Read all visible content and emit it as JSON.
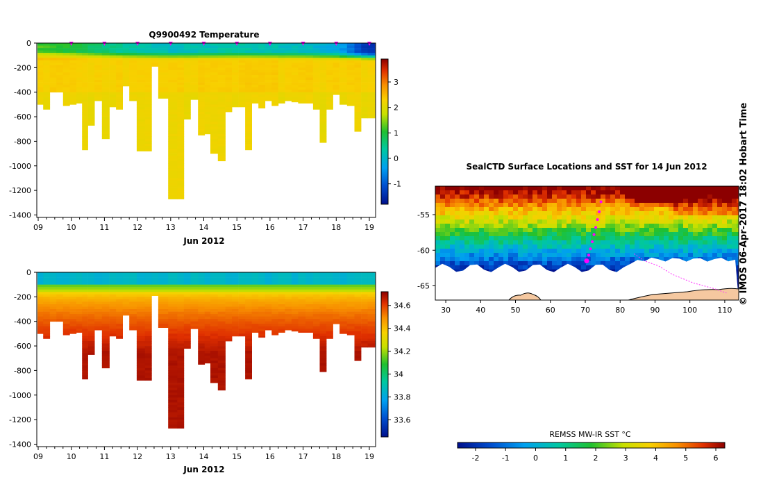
{
  "chart_data": [
    {
      "type": "heatmap",
      "panel": "temperature-section",
      "title": "Q9900492  Temperature",
      "xlabel": "Jun 2012",
      "x_ticks": [
        "09",
        "10",
        "11",
        "12",
        "13",
        "14",
        "15",
        "16",
        "17",
        "18",
        "19"
      ],
      "y_ticks": [
        "0",
        "-200",
        "-400",
        "-600",
        "-800",
        "-1000",
        "-1200",
        "-1400"
      ],
      "ylim": [
        -1420,
        0
      ],
      "xlim": [
        9.0,
        19.1
      ],
      "colorbar": {
        "ticks": [
          "3",
          "2",
          "1",
          "0",
          "-1"
        ],
        "range": [
          -1.8,
          3.9
        ]
      },
      "profile_markers_days": [
        10,
        11,
        12,
        13,
        14,
        15,
        16,
        17,
        18,
        19
      ],
      "profiles": [
        {
          "day": 9.05,
          "max_depth": 500
        },
        {
          "day": 9.25,
          "max_depth": 540
        },
        {
          "day": 9.45,
          "max_depth": 400
        },
        {
          "day": 9.65,
          "max_depth": 400
        },
        {
          "day": 9.85,
          "max_depth": 510
        },
        {
          "day": 10.05,
          "max_depth": 500
        },
        {
          "day": 10.25,
          "max_depth": 490
        },
        {
          "day": 10.4,
          "max_depth": 870
        },
        {
          "day": 10.6,
          "max_depth": 670
        },
        {
          "day": 10.8,
          "max_depth": 470
        },
        {
          "day": 11.05,
          "max_depth": 780
        },
        {
          "day": 11.25,
          "max_depth": 520
        },
        {
          "day": 11.45,
          "max_depth": 540
        },
        {
          "day": 11.65,
          "max_depth": 350
        },
        {
          "day": 11.85,
          "max_depth": 470
        },
        {
          "day": 12.1,
          "max_depth": 880
        },
        {
          "day": 12.35,
          "max_depth": 880
        },
        {
          "day": 12.5,
          "max_depth": 190
        },
        {
          "day": 12.75,
          "max_depth": 450
        },
        {
          "day": 13.1,
          "max_depth": 1270
        },
        {
          "day": 13.3,
          "max_depth": 1270
        },
        {
          "day": 13.5,
          "max_depth": 620
        },
        {
          "day": 13.7,
          "max_depth": 460
        },
        {
          "day": 13.95,
          "max_depth": 750
        },
        {
          "day": 14.1,
          "max_depth": 740
        },
        {
          "day": 14.3,
          "max_depth": 900
        },
        {
          "day": 14.55,
          "max_depth": 960
        },
        {
          "day": 14.75,
          "max_depth": 560
        },
        {
          "day": 14.95,
          "max_depth": 520
        },
        {
          "day": 15.15,
          "max_depth": 520
        },
        {
          "day": 15.35,
          "max_depth": 870
        },
        {
          "day": 15.55,
          "max_depth": 490
        },
        {
          "day": 15.75,
          "max_depth": 530
        },
        {
          "day": 15.95,
          "max_depth": 470
        },
        {
          "day": 16.15,
          "max_depth": 510
        },
        {
          "day": 16.35,
          "max_depth": 490
        },
        {
          "day": 16.55,
          "max_depth": 470
        },
        {
          "day": 16.75,
          "max_depth": 480
        },
        {
          "day": 16.95,
          "max_depth": 490
        },
        {
          "day": 17.2,
          "max_depth": 490
        },
        {
          "day": 17.4,
          "max_depth": 540
        },
        {
          "day": 17.6,
          "max_depth": 810
        },
        {
          "day": 17.8,
          "max_depth": 540
        },
        {
          "day": 18.0,
          "max_depth": 420
        },
        {
          "day": 18.2,
          "max_depth": 500
        },
        {
          "day": 18.45,
          "max_depth": 510
        },
        {
          "day": 18.65,
          "max_depth": 720
        },
        {
          "day": 18.85,
          "max_depth": 610
        },
        {
          "day": 19.05,
          "max_depth": 610
        }
      ],
      "surface_temperature_by_day": [
        1.2,
        1.0,
        0.6,
        0.3,
        0.1,
        0.2,
        0.3,
        0.2,
        0.1,
        -0.2,
        -1.5
      ],
      "deep_temperature": 2.2
    },
    {
      "type": "heatmap",
      "panel": "salinity-section",
      "title": "",
      "xlabel": "Jun 2012",
      "x_ticks": [
        "09",
        "10",
        "11",
        "12",
        "13",
        "14",
        "15",
        "16",
        "17",
        "18",
        "19"
      ],
      "y_ticks": [
        "0",
        "-200",
        "-400",
        "-600",
        "-800",
        "-1000",
        "-1200",
        "-1400"
      ],
      "ylim": [
        -1420,
        0
      ],
      "colorbar": {
        "ticks": [
          "34.6",
          "34.4",
          "34.2",
          "34",
          "33.8",
          "33.6"
        ],
        "range": [
          33.45,
          34.72
        ]
      },
      "surface_salinity": 33.85,
      "deep_salinity": 34.68
    },
    {
      "type": "heatmap",
      "panel": "sst-map",
      "title": "SealCTD Surface Locations and SST for 14 Jun 2012",
      "x_ticks": [
        "30",
        "40",
        "50",
        "60",
        "70",
        "80",
        "90",
        "100",
        "110"
      ],
      "y_ticks": [
        "-55",
        "-60",
        "-65"
      ],
      "xlim": [
        27,
        114
      ],
      "ylim": [
        -67,
        -51
      ],
      "colorbar_title": "REMSS MW-IR SST °C",
      "colorbar": {
        "ticks": [
          "-2",
          "-1",
          "0",
          "1",
          "2",
          "3",
          "4",
          "5",
          "6"
        ],
        "range": [
          -2.6,
          6.3
        ]
      },
      "track_points": [
        {
          "lon": 74.5,
          "lat": -53.2
        },
        {
          "lon": 74.0,
          "lat": -54.6
        },
        {
          "lon": 73.5,
          "lat": -55.7
        },
        {
          "lon": 73.0,
          "lat": -56.8
        },
        {
          "lon": 72.5,
          "lat": -57.8
        },
        {
          "lon": 72.0,
          "lat": -58.8
        },
        {
          "lon": 71.5,
          "lat": -59.8
        },
        {
          "lon": 71.0,
          "lat": -60.7
        },
        {
          "lon": 70.4,
          "lat": -61.5
        }
      ],
      "older_track": [
        {
          "lon": 84,
          "lat": -60.5
        },
        {
          "lon": 87,
          "lat": -61.5
        },
        {
          "lon": 91,
          "lat": -62.2
        },
        {
          "lon": 95,
          "lat": -63.4
        },
        {
          "lon": 101,
          "lat": -64.6
        },
        {
          "lon": 107,
          "lat": -65.4
        },
        {
          "lon": 110.5,
          "lat": -66.0
        }
      ]
    }
  ],
  "stamp": "© IMOS 06-Apr-2017 18:02 Hobart Time",
  "colors": {
    "marker": "#ff00ff",
    "land": "#f5c8a0",
    "track": "#ff33ff"
  }
}
